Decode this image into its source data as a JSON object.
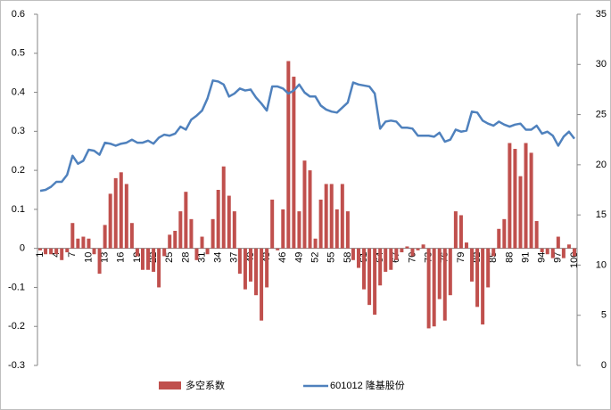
{
  "chart_data": {
    "type": "bar",
    "categories": [
      "1",
      null,
      null,
      "4",
      null,
      null,
      "7",
      null,
      null,
      "10",
      null,
      null,
      "13",
      null,
      null,
      "16",
      null,
      null,
      "19",
      null,
      null,
      "22",
      null,
      null,
      "25",
      null,
      null,
      "28",
      null,
      null,
      "31",
      null,
      null,
      "34",
      null,
      null,
      "37",
      null,
      null,
      "40",
      null,
      null,
      "43",
      null,
      null,
      "46",
      null,
      null,
      "49",
      null,
      null,
      "52",
      null,
      null,
      "55",
      null,
      null,
      "58",
      null,
      null,
      "61",
      null,
      null,
      "64",
      null,
      null,
      "67",
      null,
      null,
      "70",
      null,
      null,
      "73",
      null,
      null,
      "76",
      null,
      null,
      "79",
      null,
      null,
      "82",
      null,
      null,
      "85",
      null,
      null,
      "88",
      null,
      null,
      "91",
      null,
      null,
      "94",
      null,
      null,
      "97",
      null,
      null,
      "100"
    ],
    "series": [
      {
        "name": "多空系数",
        "type": "bar",
        "color": "#c0504d",
        "values": [
          -0.005,
          -0.015,
          -0.015,
          -0.015,
          -0.03,
          -0.01,
          0.065,
          0.025,
          0.03,
          0.025,
          -0.015,
          -0.065,
          0.06,
          0.14,
          0.18,
          0.195,
          0.165,
          0.065,
          -0.02,
          -0.055,
          -0.055,
          -0.06,
          -0.1,
          -0.02,
          0.035,
          0.045,
          0.095,
          0.145,
          0.075,
          -0.03,
          0.03,
          -0.015,
          0.075,
          0.15,
          0.21,
          0.135,
          0.095,
          -0.065,
          -0.105,
          -0.085,
          -0.12,
          -0.185,
          -0.1,
          0.125,
          -0.005,
          0.1,
          0.48,
          0.44,
          0.095,
          0.225,
          0.2,
          0.025,
          0.125,
          0.165,
          0.165,
          0.1,
          0.165,
          0.095,
          -0.03,
          -0.05,
          -0.105,
          -0.145,
          -0.17,
          -0.095,
          -0.06,
          -0.055,
          -0.03,
          -0.01,
          0.005,
          -0.02,
          -0.005,
          0.01,
          -0.205,
          -0.2,
          -0.13,
          -0.185,
          -0.12,
          0.095,
          0.085,
          0.015,
          -0.085,
          -0.15,
          -0.195,
          -0.1,
          -0.02,
          0.05,
          0.075,
          0.27,
          0.255,
          0.185,
          0.27,
          0.245,
          0.07,
          -0.01,
          -0.015,
          -0.025,
          0.03,
          -0.025,
          0.01,
          -0.02
        ]
      },
      {
        "name": "601012 隆基股份",
        "type": "line",
        "axis": "y2",
        "color": "#4f81bd",
        "values": [
          17.4,
          17.5,
          17.8,
          18.3,
          18.3,
          19.0,
          20.9,
          20.1,
          20.4,
          21.5,
          21.4,
          21.0,
          22.2,
          22.1,
          21.9,
          22.1,
          22.2,
          22.5,
          22.2,
          22.2,
          22.4,
          22.1,
          22.7,
          23.0,
          22.9,
          23.1,
          23.8,
          23.5,
          24.5,
          24.9,
          25.4,
          26.6,
          28.4,
          28.3,
          28.0,
          26.8,
          27.1,
          27.6,
          27.4,
          27.5,
          26.7,
          26.1,
          25.4,
          27.8,
          27.8,
          27.6,
          27.1,
          27.4,
          28.0,
          27.2,
          26.8,
          26.8,
          25.9,
          25.5,
          25.3,
          25.2,
          25.7,
          26.2,
          28.2,
          28.0,
          27.9,
          27.8,
          27.1,
          23.6,
          24.3,
          24.4,
          24.3,
          23.7,
          23.7,
          23.6,
          22.9,
          22.9,
          22.9,
          22.8,
          23.2,
          22.3,
          22.5,
          23.5,
          23.3,
          23.4,
          25.3,
          25.2,
          24.4,
          24.1,
          23.9,
          24.3,
          24.0,
          23.8,
          24.0,
          24.1,
          23.5,
          23.5,
          23.9,
          23.1,
          23.3,
          22.9,
          21.9,
          22.8,
          23.3,
          22.6
        ]
      }
    ],
    "ylim": [
      -0.3,
      0.6
    ],
    "yticks": [
      0.6,
      0.5,
      0.4,
      0.3,
      0.2,
      0.1,
      0,
      -0.1,
      -0.2,
      -0.3
    ],
    "y2lim": [
      0,
      35
    ],
    "y2ticks": [
      35,
      30,
      25,
      20,
      15,
      10,
      5,
      0
    ],
    "legend": "bottom"
  }
}
